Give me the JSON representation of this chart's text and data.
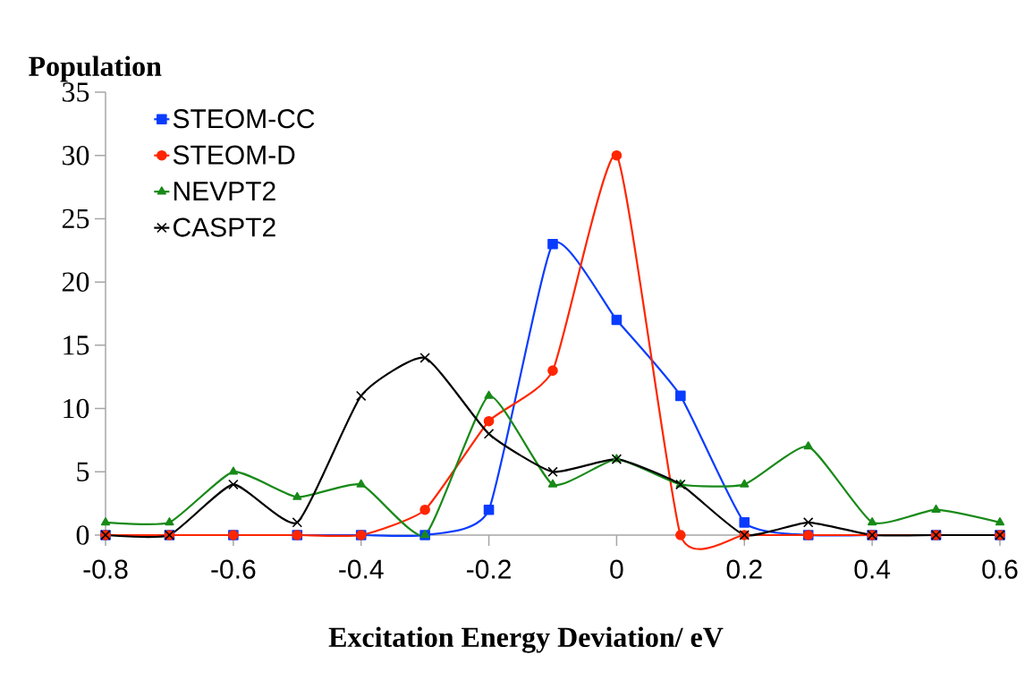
{
  "chart_data": {
    "type": "line",
    "ylabel": "Population",
    "xlabel": "Excitation Energy Deviation/ eV",
    "x": [
      -0.8,
      -0.7,
      -0.6,
      -0.5,
      -0.4,
      -0.3,
      -0.2,
      -0.1,
      0,
      0.1,
      0.2,
      0.3,
      0.4,
      0.5,
      0.6
    ],
    "series": [
      {
        "name": "STEOM-CC",
        "color": "#0a3cff",
        "marker": "square",
        "values": [
          0,
          0,
          0,
          0,
          0,
          0,
          2,
          23,
          17,
          11,
          1,
          0,
          0,
          0,
          0
        ]
      },
      {
        "name": "STEOM-D",
        "color": "#ff2600",
        "marker": "circle",
        "values": [
          0,
          0,
          0,
          0,
          0,
          2,
          9,
          13,
          30,
          0,
          0,
          0,
          0,
          0,
          0
        ]
      },
      {
        "name": "NEVPT2",
        "color": "#188a18",
        "marker": "triangle",
        "values": [
          1,
          1,
          5,
          3,
          4,
          0,
          11,
          4,
          6,
          4,
          4,
          7,
          1,
          2,
          1
        ]
      },
      {
        "name": "CASPT2",
        "color": "#000000",
        "marker": "cross",
        "values": [
          0,
          0,
          4,
          1,
          11,
          14,
          8,
          5,
          6,
          4,
          0,
          1,
          0,
          0,
          0
        ]
      }
    ],
    "xlim": [
      -0.8,
      0.6
    ],
    "ylim": [
      0,
      35
    ],
    "xticks": [
      -0.8,
      -0.6,
      -0.4,
      -0.2,
      0,
      0.2,
      0.4,
      0.6
    ],
    "yticks": [
      0,
      5,
      10,
      15,
      20,
      25,
      30,
      35
    ],
    "legend": "top left",
    "grid": false
  }
}
